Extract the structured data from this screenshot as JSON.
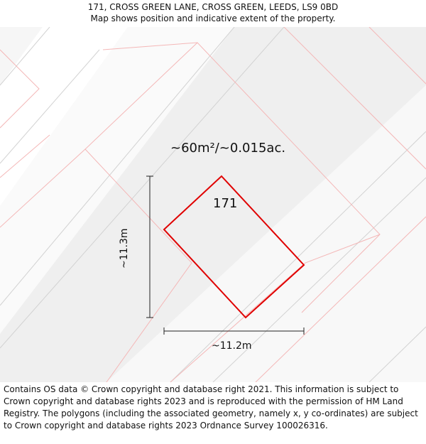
{
  "header": {
    "address": "171, CROSS GREEN LANE, CROSS GREEN, LEEDS, LS9 0BD",
    "subtitle": "Map shows position and indicative extent of the property."
  },
  "map": {
    "area_label": "~60m²/~0.015ac.",
    "plot_number": "171",
    "width_label": "~11.2m",
    "height_label": "~11.3m",
    "colors": {
      "background": "#f6f6f6",
      "band_light": "#fafafa",
      "band_dark": "#eeeeee",
      "parcel_outline": "#f5b5b5",
      "property_outline": "#e00000",
      "road_line": "#cccccc"
    }
  },
  "footer": {
    "attribution": "Contains OS data © Crown copyright and database right 2021. This information is subject to Crown copyright and database rights 2023 and is reproduced with the permission of HM Land Registry. The polygons (including the associated geometry, namely x, y co-ordinates) are subject to Crown copyright and database rights 2023 Ordnance Survey 100026316."
  }
}
